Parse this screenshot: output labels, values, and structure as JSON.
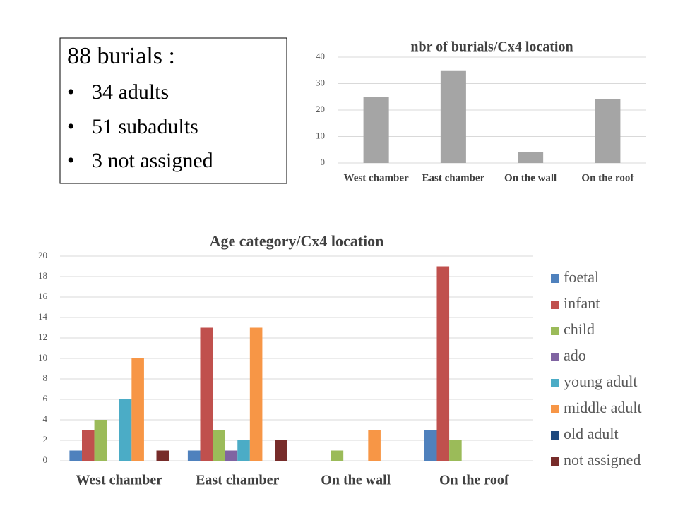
{
  "text_box": {
    "title": "88 burials :",
    "items": [
      "34 adults",
      "51 subadults",
      "3 not assigned"
    ]
  },
  "chart_data": [
    {
      "type": "bar",
      "title": "nbr of burials/Cx4 location",
      "categories": [
        "West chamber",
        "East chamber",
        "On the wall",
        "On the roof"
      ],
      "values": [
        25,
        35,
        4,
        24
      ],
      "color": "#a5a5a5",
      "ylim": [
        0,
        40
      ],
      "yticks": [
        0,
        10,
        20,
        30,
        40
      ],
      "grid": true
    },
    {
      "type": "grouped-bar",
      "title": "Age category/Cx4 location",
      "categories": [
        "West chamber",
        "East chamber",
        "On the wall",
        "On the roof"
      ],
      "series": [
        {
          "name": "foetal",
          "color": "#4f81bd",
          "values": [
            1,
            1,
            0,
            3
          ]
        },
        {
          "name": "infant",
          "color": "#c0504d",
          "values": [
            3,
            13,
            0,
            19
          ]
        },
        {
          "name": "child",
          "color": "#9bbb59",
          "values": [
            4,
            3,
            1,
            2
          ]
        },
        {
          "name": "ado",
          "color": "#8064a2",
          "values": [
            0,
            1,
            0,
            0
          ]
        },
        {
          "name": "young adult",
          "color": "#4bacc6",
          "values": [
            6,
            2,
            0,
            0
          ]
        },
        {
          "name": "middle adult",
          "color": "#f79646",
          "values": [
            10,
            13,
            3,
            0
          ]
        },
        {
          "name": "old adult",
          "color": "#1f497d",
          "values": [
            0,
            0,
            0,
            0
          ]
        },
        {
          "name": "not assigned",
          "color": "#772c2a",
          "values": [
            1,
            2,
            0,
            0
          ]
        }
      ],
      "ylim": [
        0,
        20
      ],
      "yticks": [
        0,
        2,
        4,
        6,
        8,
        10,
        12,
        14,
        16,
        18,
        20
      ],
      "grid": true,
      "legend": "right"
    }
  ]
}
